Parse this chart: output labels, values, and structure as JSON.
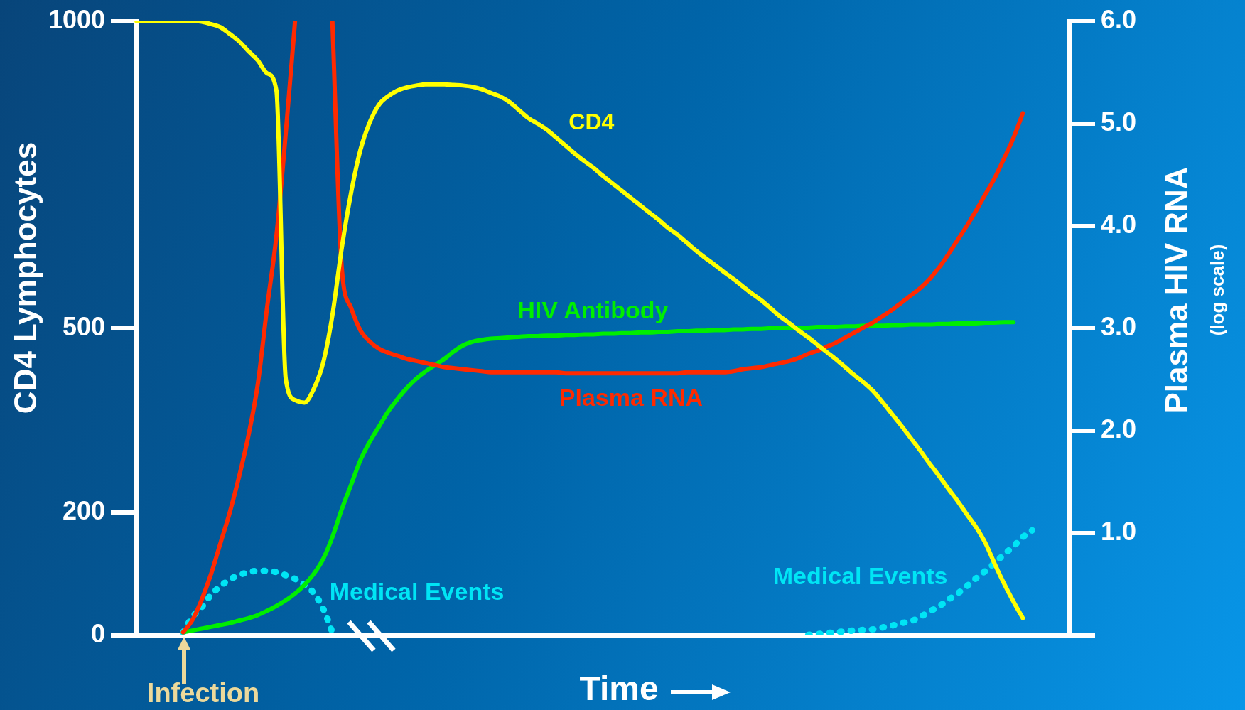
{
  "chart_data": {
    "type": "line",
    "xlabel": "Time",
    "ylabel": "CD4 Lymphocytes",
    "y2label": "Plasma HIV RNA",
    "categories": [
      null,
      null,
      null,
      null,
      null,
      null,
      null,
      null,
      null,
      null,
      null,
      null,
      null,
      null,
      null,
      null,
      null,
      null,
      null,
      null,
      null,
      null,
      null,
      null,
      null,
      null,
      null,
      null,
      null,
      null,
      null,
      null,
      null,
      null,
      null,
      null,
      null,
      null,
      null,
      null,
      null,
      null,
      null,
      null,
      null,
      null,
      null,
      null,
      null,
      null,
      null,
      null,
      null,
      null,
      null,
      null,
      null,
      null,
      null,
      null,
      null,
      null,
      null,
      null,
      null,
      null,
      null,
      null,
      null,
      null,
      null,
      null,
      null,
      null,
      null,
      null,
      null,
      null,
      null,
      null,
      null,
      null,
      null,
      null,
      null,
      null,
      null,
      null,
      null,
      null,
      null,
      null,
      null,
      null,
      null,
      null,
      null,
      null,
      null,
      null,
      null
    ],
    "ylim": [
      0,
      1000
    ],
    "yticks": [
      0,
      200,
      500,
      1000
    ],
    "y2lim": [
      0,
      6
    ],
    "y2ticks": [
      {
        "value": 0,
        "label": null
      },
      {
        "value": 1,
        "label": "1.0"
      },
      {
        "value": 2,
        "label": "2.0"
      },
      {
        "value": 3,
        "label": "3.0"
      },
      {
        "value": 4,
        "label": "4.0"
      },
      {
        "value": 5,
        "label": "5.0"
      },
      {
        "value": 6,
        "label": "6.0"
      }
    ],
    "marker": "none",
    "annotations": [
      "Infection",
      "(log scale)"
    ],
    "series": [
      {
        "name": "CD4",
        "color": "#ffff00",
        "values": [
          1000,
          1000,
          1000,
          1000,
          1000,
          1000,
          1000,
          999,
          995,
          990,
          979,
          967,
          951,
          936,
          915,
          887,
          418,
          383,
          379,
          401,
          443,
          521,
          630,
          720,
          790,
          835,
          864,
          878,
          887,
          892,
          895,
          897,
          897,
          897,
          896,
          895,
          893,
          889,
          883,
          877,
          868,
          855,
          842,
          833,
          823,
          810,
          797,
          784,
          772,
          761,
          748,
          736,
          724,
          712,
          700,
          688,
          676,
          663,
          652,
          639,
          626,
          614,
          603,
          591,
          580,
          568,
          556,
          545,
          532,
          519,
          508,
          496,
          485,
          473,
          461,
          449,
          436,
          423,
          411,
          397,
          379,
          360,
          341,
          321,
          301,
          280,
          260,
          239,
          219,
          197,
          176,
          150,
          116,
          84,
          55,
          28,
          null,
          null,
          null,
          null,
          null
        ]
      },
      {
        "name": "Plasma RNA",
        "color": "#ff2a00",
        "axis": "y2",
        "values": [
          null,
          null,
          null,
          null,
          null,
          0.03,
          0.15,
          0.35,
          0.6,
          0.9,
          1.2,
          1.55,
          1.95,
          2.45,
          3.2,
          3.9,
          4.9,
          6.0,
          null,
          null,
          null,
          6.0,
          3.6,
          3.2,
          2.98,
          2.87,
          2.8,
          2.76,
          2.73,
          2.7,
          2.68,
          2.66,
          2.64,
          2.62,
          2.61,
          2.6,
          2.59,
          2.58,
          2.57,
          2.57,
          2.57,
          2.57,
          2.57,
          2.57,
          2.57,
          2.57,
          2.56,
          2.56,
          2.56,
          2.56,
          2.56,
          2.56,
          2.56,
          2.56,
          2.56,
          2.56,
          2.56,
          2.56,
          2.56,
          2.57,
          2.57,
          2.57,
          2.57,
          2.57,
          2.58,
          2.6,
          2.61,
          2.62,
          2.64,
          2.66,
          2.68,
          2.71,
          2.75,
          2.78,
          2.82,
          2.86,
          2.91,
          2.96,
          3.01,
          3.06,
          3.12,
          3.18,
          3.25,
          3.32,
          3.39,
          3.48,
          3.59,
          3.72,
          3.86,
          4.0,
          4.15,
          4.31,
          4.47,
          4.66,
          4.86,
          5.1,
          null,
          null,
          null,
          null,
          null
        ]
      },
      {
        "name": "HIV Antibody",
        "color": "#00ee00",
        "values": [
          null,
          null,
          null,
          null,
          null,
          5,
          8,
          11,
          14,
          17,
          20,
          24,
          28,
          33,
          40,
          48,
          57,
          68,
          82,
          100,
          124,
          160,
          205,
          245,
          285,
          315,
          340,
          365,
          385,
          403,
          418,
          430,
          440,
          450,
          462,
          472,
          478,
          481,
          483,
          484,
          485,
          486,
          487,
          487,
          488,
          488,
          489,
          489,
          490,
          490,
          491,
          491,
          492,
          492,
          493,
          493,
          494,
          494,
          495,
          495,
          496,
          496,
          497,
          497,
          498,
          498,
          499,
          499,
          500,
          500,
          500,
          501,
          501,
          502,
          502,
          502,
          503,
          503,
          504,
          504,
          504,
          505,
          505,
          506,
          506,
          506,
          507,
          507,
          508,
          508,
          508,
          509,
          509,
          510,
          510,
          null,
          null,
          null,
          null,
          null,
          null
        ]
      },
      {
        "name": "Medical Events",
        "color": "#00e5f5",
        "line_style": "dotted",
        "values": [
          null,
          null,
          null,
          null,
          null,
          5,
          30,
          46,
          66,
          80,
          91,
          98,
          103,
          105,
          105,
          103,
          98,
          92,
          82,
          69,
          44,
          5,
          null,
          null,
          null,
          null,
          null,
          null,
          null,
          null,
          null,
          null,
          null,
          null,
          null,
          null,
          null,
          null,
          null,
          null,
          null,
          null,
          null,
          null,
          null,
          null,
          null,
          null,
          null,
          null,
          null,
          null,
          null,
          null,
          null,
          null,
          null,
          null,
          null,
          null,
          null,
          null,
          null,
          null,
          null,
          null,
          null,
          null,
          null,
          null,
          null,
          null,
          null,
          null,
          null,
          null,
          null,
          null,
          null,
          null,
          null,
          null,
          null,
          null,
          null,
          null,
          null,
          null,
          null,
          null,
          null,
          null,
          null,
          null,
          null,
          null,
          null,
          null,
          null,
          null,
          null
        ]
      },
      {
        "name": "Medical Events",
        "color": "#00e5f5",
        "line_style": "dotted",
        "values": [
          null,
          null,
          null,
          null,
          null,
          null,
          null,
          null,
          null,
          null,
          null,
          null,
          null,
          null,
          null,
          null,
          null,
          null,
          null,
          null,
          null,
          null,
          null,
          null,
          null,
          null,
          null,
          null,
          null,
          null,
          null,
          null,
          null,
          null,
          null,
          null,
          null,
          null,
          null,
          null,
          null,
          null,
          null,
          null,
          null,
          null,
          null,
          null,
          null,
          null,
          null,
          null,
          null,
          null,
          null,
          null,
          null,
          null,
          null,
          null,
          null,
          null,
          null,
          null,
          null,
          null,
          null,
          null,
          null,
          null,
          null,
          null,
          1,
          2,
          4,
          5,
          7,
          8,
          9,
          10,
          13,
          16,
          20,
          23,
          30,
          39,
          47,
          58,
          68,
          80,
          93,
          105,
          118,
          132,
          145,
          160,
          171,
          null,
          null,
          null,
          null
        ]
      }
    ]
  }
}
